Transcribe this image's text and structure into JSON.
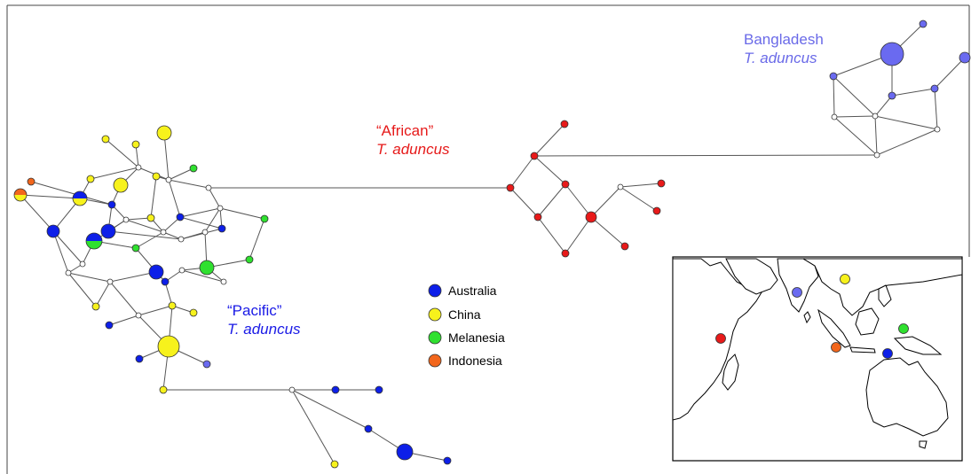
{
  "colors": {
    "australia": "#0d1fe8",
    "china": "#f7f21c",
    "melanesia": "#2fe02f",
    "indonesia": "#f2661c",
    "african": "#e81a1a",
    "bangladesh": "#6a6af0",
    "median": "#ffffff",
    "label_pacific": "#1a1ae6",
    "label_african": "#e61a1a",
    "label_bangladesh": "#6a6ae8"
  },
  "labels": {
    "bangladesh_line1": "Bangladesh",
    "bangladesh_line2": "T. aduncus",
    "african_line1": "“African”",
    "african_line2": "T. aduncus",
    "pacific_line1": "“Pacific”",
    "pacific_line2": "T. aduncus"
  },
  "legend": [
    {
      "label": "Australia",
      "color_key": "australia"
    },
    {
      "label": "China",
      "color_key": "china"
    },
    {
      "label": "Melanesia",
      "color_key": "melanesia"
    },
    {
      "label": "Indonesia",
      "color_key": "indonesia"
    }
  ],
  "map_markers": [
    {
      "name": "africa-marker",
      "color_key": "african"
    },
    {
      "name": "bangladesh-marker",
      "color_key": "bangladesh"
    },
    {
      "name": "china-marker",
      "color_key": "china"
    },
    {
      "name": "indonesia-marker",
      "color_key": "indonesia"
    },
    {
      "name": "melanesia-marker",
      "color_key": "melanesia"
    },
    {
      "name": "australia-marker",
      "color_key": "australia"
    }
  ]
}
